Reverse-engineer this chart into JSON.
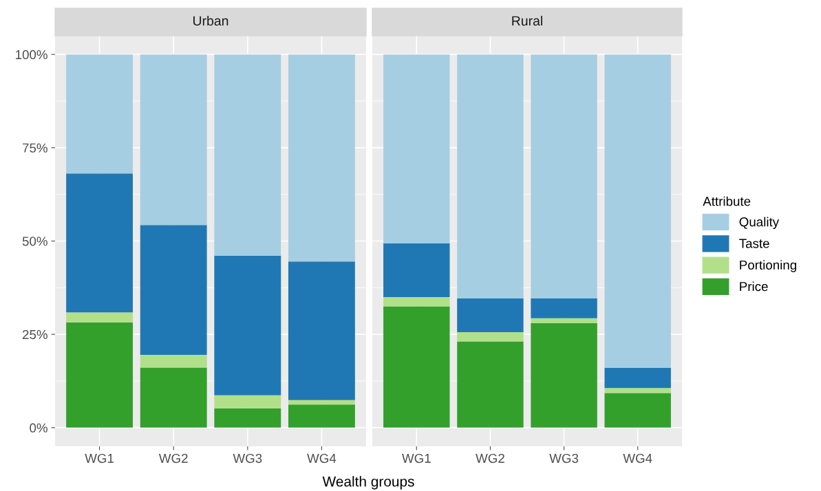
{
  "chart_data": [
    {
      "type": "bar",
      "title": "Urban",
      "xlabel": "Wealth groups",
      "stacked": true,
      "categories": [
        "WG1",
        "WG2",
        "WG3",
        "WG4"
      ],
      "legend": "right",
      "legend_title": "Attribute",
      "series": [
        {
          "name": "Price",
          "color": "#33a02c",
          "values": [
            28.2,
            16.1,
            5.2,
            6.2
          ]
        },
        {
          "name": "Portioning",
          "color": "#b2df8a",
          "values": [
            2.7,
            3.4,
            3.5,
            1.2
          ]
        },
        {
          "name": "Taste",
          "color": "#1f78b4",
          "values": [
            37.2,
            34.8,
            37.4,
            37.1
          ]
        },
        {
          "name": "Quality",
          "color": "#a6cee3",
          "values": [
            31.9,
            45.7,
            53.9,
            55.5
          ]
        }
      ],
      "ylim": [
        -5,
        105
      ],
      "yticks": [
        {
          "value": 0,
          "label": "0%"
        },
        {
          "value": 25,
          "label": "25%"
        },
        {
          "value": 50,
          "label": "50%"
        },
        {
          "value": 75,
          "label": "75%"
        },
        {
          "value": 100,
          "label": "100%"
        }
      ],
      "grid": true
    },
    {
      "type": "bar",
      "title": "Rural",
      "stacked": true,
      "categories": [
        "WG1",
        "WG2",
        "WG3",
        "WG4"
      ],
      "series": [
        {
          "color": "#33a02c",
          "values": [
            32.5,
            23.1,
            28.0,
            9.3
          ]
        },
        {
          "color": "#b2df8a",
          "values": [
            2.5,
            2.5,
            1.3,
            1.3
          ]
        },
        {
          "color": "#1f78b4",
          "values": [
            14.4,
            9.0,
            5.3,
            5.4
          ]
        },
        {
          "color": "#a6cee3",
          "values": [
            50.6,
            65.4,
            65.4,
            84.0
          ]
        }
      ],
      "ylim": [
        -5,
        105
      ],
      "yticks": [
        {
          "value": 0,
          "label": null
        },
        {
          "value": 25,
          "label": null
        },
        {
          "value": 50,
          "label": null
        },
        {
          "value": 75,
          "label": null
        },
        {
          "value": 100,
          "label": null
        }
      ],
      "tick_labels": "x",
      "grid": true
    }
  ]
}
